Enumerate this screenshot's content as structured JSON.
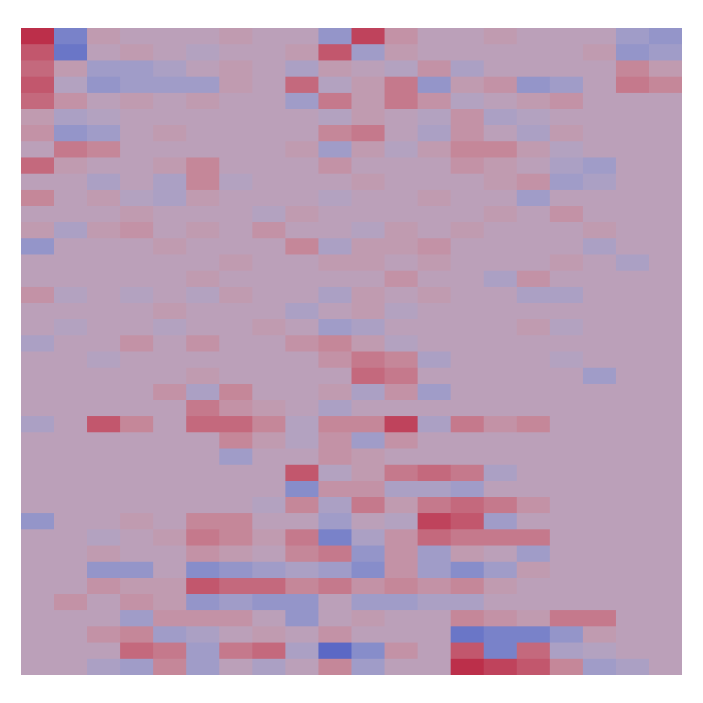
{
  "chart_data": {
    "type": "heatmap",
    "tick_labels": false,
    "zlim": [
      -1,
      1
    ],
    "cells": [
      [
        0.8,
        -0.6,
        0.1,
        0,
        0,
        0,
        0.1,
        0,
        0,
        -0.4,
        0.7,
        0.2,
        0,
        0,
        0.1,
        0,
        0,
        0,
        -0.3,
        -0.4
      ],
      [
        0.6,
        -0.7,
        0,
        0.1,
        0,
        -0.1,
        0,
        0,
        0.1,
        0.6,
        -0.3,
        0.1,
        0,
        0,
        0,
        0,
        0,
        0.1,
        -0.4,
        -0.3
      ],
      [
        0.5,
        0.1,
        -0.3,
        -0.3,
        -0.2,
        0,
        0.1,
        0,
        -0.2,
        0.1,
        0,
        -0.1,
        0.2,
        -0.2,
        0,
        0,
        0,
        0,
        0.3,
        0.1
      ],
      [
        0.6,
        -0.1,
        -0.4,
        -0.3,
        -0.3,
        -0.3,
        0.1,
        0,
        0.5,
        -0.1,
        0.1,
        0.4,
        -0.4,
        0.1,
        0.2,
        -0.4,
        -0.3,
        0,
        0.4,
        0.3
      ],
      [
        0.5,
        0.2,
        0,
        0.1,
        0,
        0.1,
        0,
        0,
        -0.3,
        0.4,
        0.1,
        0.4,
        0.2,
        -0.1,
        0,
        0.1,
        0.2,
        0,
        0,
        0
      ],
      [
        0.1,
        -0.2,
        -0.1,
        0,
        0,
        0,
        0,
        0,
        0,
        -0.1,
        0.1,
        0,
        -0.1,
        0.2,
        -0.2,
        -0.1,
        0,
        0,
        0,
        0
      ],
      [
        0.2,
        -0.4,
        -0.3,
        0,
        0.1,
        0,
        0,
        0,
        0,
        0.3,
        0.4,
        0,
        -0.2,
        0.2,
        0,
        -0.2,
        0.1,
        0,
        0,
        0
      ],
      [
        0,
        0.4,
        0.3,
        0,
        0,
        0,
        0,
        0,
        0.1,
        -0.3,
        0.1,
        -0.1,
        0.1,
        0.3,
        0.3,
        0.1,
        -0.1,
        0,
        0,
        0
      ],
      [
        0.5,
        0.1,
        0,
        0,
        0.1,
        0.3,
        0,
        0,
        0,
        0.2,
        0,
        0,
        0,
        0.2,
        0.1,
        0,
        -0.2,
        -0.3,
        0,
        0
      ],
      [
        0,
        0,
        -0.2,
        0,
        -0.2,
        0.3,
        -0.1,
        0,
        0,
        0,
        0.1,
        0,
        0,
        0,
        0.1,
        0.2,
        -0.3,
        -0.2,
        0,
        0
      ],
      [
        0.3,
        0,
        0.1,
        -0.1,
        -0.2,
        0.1,
        0,
        0,
        0,
        -0.1,
        0,
        0,
        0.1,
        0,
        0,
        -0.3,
        0,
        0,
        0,
        0
      ],
      [
        0,
        0,
        0,
        0.1,
        0,
        0,
        0,
        -0.1,
        0.1,
        0,
        0,
        0,
        0,
        0,
        0.1,
        0,
        0.2,
        0,
        0,
        0
      ],
      [
        0.1,
        -0.2,
        0.1,
        0.2,
        0,
        0.1,
        0,
        0.2,
        0,
        0,
        -0.1,
        0.1,
        0,
        0.1,
        0,
        0,
        0,
        0.1,
        0,
        0
      ],
      [
        -0.4,
        0,
        0,
        0,
        0.1,
        0,
        0,
        0,
        0.3,
        -0.2,
        0.1,
        0.1,
        0.2,
        0,
        0,
        0,
        0,
        -0.2,
        0,
        0
      ],
      [
        0,
        0,
        0,
        0,
        0,
        0,
        0.1,
        0,
        0,
        0.1,
        0.1,
        0,
        0.1,
        0,
        0,
        0,
        0.1,
        0,
        -0.2,
        0
      ],
      [
        0,
        0,
        0,
        0,
        0,
        0.1,
        0,
        0,
        0,
        0,
        0,
        0.2,
        0,
        0,
        -0.2,
        0.2,
        0,
        0,
        0,
        0
      ],
      [
        0.2,
        -0.1,
        0,
        -0.1,
        0,
        -0.1,
        0.1,
        0,
        0,
        -0.2,
        0.1,
        0,
        0.1,
        0,
        0,
        -0.2,
        -0.2,
        0,
        0,
        0
      ],
      [
        0,
        0,
        0,
        0,
        0.1,
        0,
        0,
        0,
        -0.2,
        0,
        0.1,
        -0.1,
        0,
        0,
        0,
        0,
        0,
        0,
        0,
        0
      ],
      [
        0,
        -0.1,
        0,
        0,
        -0.1,
        0,
        0,
        0.1,
        0,
        -0.3,
        -0.2,
        0,
        0,
        0,
        0,
        0.1,
        -0.1,
        0,
        0,
        0
      ],
      [
        -0.2,
        0,
        0,
        0.2,
        0,
        0.2,
        0,
        0,
        0.2,
        0.3,
        0.1,
        -0.1,
        0,
        0,
        0,
        0,
        0,
        0,
        0,
        0
      ],
      [
        0,
        0,
        -0.1,
        0,
        0,
        0,
        0,
        0,
        0,
        0.2,
        0.4,
        0.3,
        -0.2,
        0,
        0,
        0,
        -0.1,
        0,
        0,
        0
      ],
      [
        0,
        0,
        0,
        0,
        0,
        0.1,
        0,
        0,
        0,
        0,
        0.5,
        0.4,
        0,
        0,
        0,
        0,
        0,
        -0.3,
        0,
        0
      ],
      [
        0,
        0,
        0,
        0,
        0.2,
        -0.2,
        0.3,
        0,
        0,
        0.1,
        -0.2,
        0.2,
        -0.3,
        0,
        0,
        0,
        0,
        0,
        0,
        0
      ],
      [
        0,
        0,
        0,
        0,
        0,
        0.4,
        0.2,
        0.1,
        0,
        -0.2,
        0,
        0,
        0,
        0,
        0,
        0,
        0,
        0,
        0,
        0
      ],
      [
        -0.2,
        0,
        0.6,
        0.3,
        0,
        0.5,
        0.5,
        0.3,
        -0.1,
        0.3,
        0.3,
        0.7,
        -0.2,
        0.4,
        0.2,
        0.3,
        0,
        0,
        0,
        0
      ],
      [
        0,
        0,
        0,
        0,
        0,
        0,
        0.3,
        0.1,
        -0.1,
        0.2,
        -0.3,
        0.2,
        0,
        0,
        0,
        0,
        0,
        0,
        0,
        0
      ],
      [
        0,
        0,
        0,
        0,
        0,
        0,
        -0.3,
        0,
        0,
        0.2,
        0.1,
        0,
        0,
        0,
        0,
        0,
        0,
        0,
        0,
        0
      ],
      [
        0,
        0,
        0,
        0,
        0,
        0,
        0,
        0,
        0.6,
        -0.1,
        0.1,
        0.4,
        0.5,
        0.4,
        -0.2,
        0,
        0,
        0,
        0,
        0
      ],
      [
        0,
        0,
        0,
        0,
        0,
        0,
        0,
        0,
        -0.5,
        0.2,
        0.2,
        -0.2,
        -0.2,
        -0.3,
        0,
        0,
        0,
        0,
        0,
        0
      ],
      [
        0,
        0,
        0,
        0,
        0,
        0,
        0,
        -0.1,
        0.3,
        -0.2,
        0.4,
        0.1,
        0.4,
        0.5,
        0.4,
        0.2,
        0,
        0,
        0,
        0
      ],
      [
        -0.4,
        0,
        0,
        0.1,
        0,
        0.3,
        0.3,
        0,
        0,
        -0.3,
        0,
        -0.1,
        0.7,
        0.6,
        -0.3,
        0,
        0,
        0,
        0,
        0
      ],
      [
        0,
        0,
        -0.1,
        0,
        0.1,
        0.4,
        0.3,
        0.1,
        0.4,
        -0.6,
        -0.2,
        0.2,
        0.5,
        0.4,
        0.4,
        0.4,
        0,
        0,
        0,
        0
      ],
      [
        0,
        0,
        0.1,
        0,
        0,
        0.2,
        0.1,
        0,
        0.3,
        0.4,
        -0.4,
        0.2,
        -0.3,
        0.1,
        0,
        -0.3,
        0,
        0,
        0,
        0
      ],
      [
        0,
        0,
        -0.4,
        -0.4,
        0,
        -0.5,
        -0.4,
        -0.3,
        -0.2,
        -0.3,
        -0.5,
        0.2,
        -0.3,
        -0.5,
        -0.3,
        0.1,
        0,
        0,
        0,
        0
      ],
      [
        0,
        0,
        0.2,
        0.1,
        0.1,
        0.6,
        0.5,
        0.5,
        0.3,
        0.4,
        0.2,
        0.3,
        0.2,
        0.3,
        0.1,
        0,
        0,
        0,
        0,
        0
      ],
      [
        0,
        0.2,
        0,
        0.2,
        0.1,
        -0.4,
        -0.3,
        -0.4,
        -0.4,
        0,
        -0.3,
        -0.3,
        -0.2,
        -0.2,
        0,
        0,
        0,
        0,
        0,
        0
      ],
      [
        0,
        0,
        0,
        -0.3,
        0.2,
        0.2,
        0.2,
        0,
        -0.4,
        0,
        0.1,
        0,
        0,
        0.3,
        0.2,
        0.1,
        0.4,
        0.4,
        0,
        0
      ],
      [
        0,
        0,
        0.2,
        0.3,
        -0.3,
        -0.2,
        0,
        0.1,
        0,
        0.2,
        0,
        0,
        0,
        -0.7,
        -0.6,
        -0.6,
        -0.4,
        0.1,
        0,
        0
      ],
      [
        0,
        0,
        0,
        0.5,
        0.4,
        -0.3,
        0.4,
        0.5,
        -0.2,
        -0.8,
        -0.5,
        0.2,
        0,
        0.6,
        -0.6,
        0.5,
        -0.2,
        -0.1,
        0,
        0
      ],
      [
        0,
        0,
        -0.2,
        -0.3,
        0.3,
        -0.3,
        0,
        -0.2,
        0,
        0.3,
        -0.3,
        0,
        0,
        0.8,
        0.7,
        0.6,
        0.3,
        -0.3,
        -0.2,
        0
      ]
    ]
  }
}
